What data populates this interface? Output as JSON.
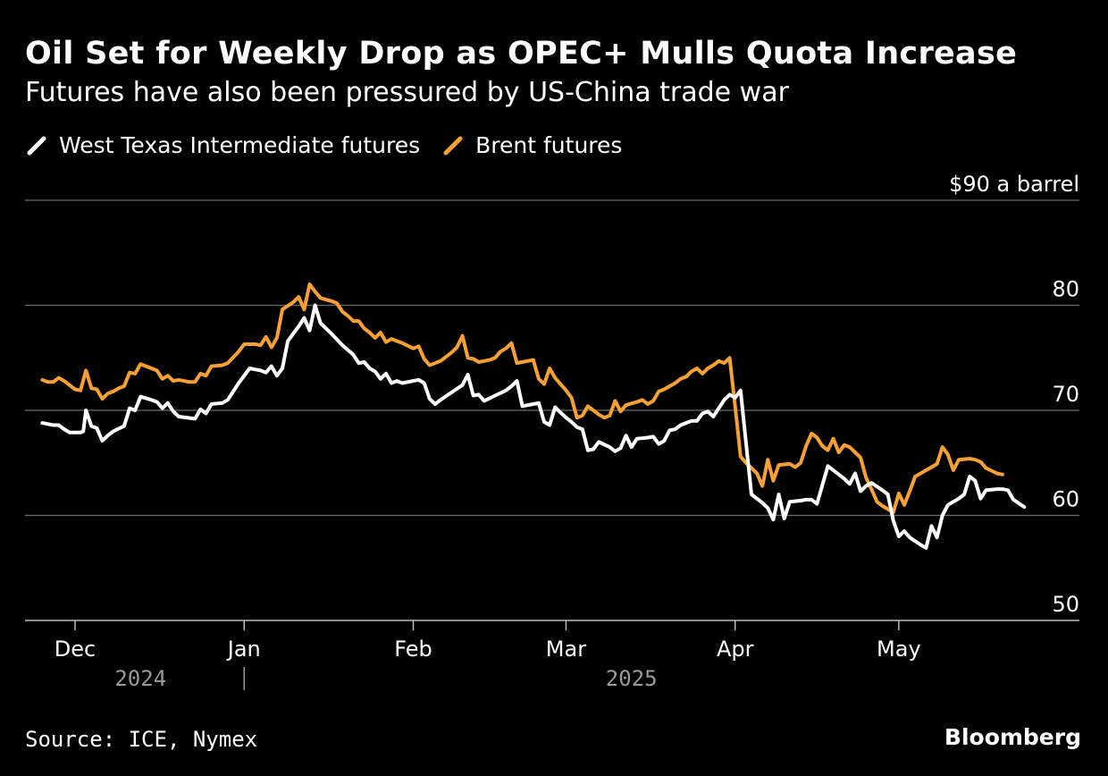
{
  "header": {
    "title": "Oil Set for Weekly Drop as OPEC+ Mulls Quota Increase",
    "subtitle": "Futures have also been pressured by US-China trade war"
  },
  "footer": {
    "source": "Source: ICE, Nymex",
    "brand": "Bloomberg"
  },
  "colors": {
    "background": "#000000",
    "wti": "#ffffff",
    "brent": "#f7a033",
    "grid": "#6b6b6b",
    "year_label": "#9a9a9a"
  },
  "chart_data": {
    "type": "line",
    "title": "Oil Set for Weekly Drop as OPEC+ Mulls Quota Increase",
    "subtitle": "Futures have also been pressured by US-China trade war",
    "ylabel": "$90 a barrel",
    "ylim": [
      50,
      90
    ],
    "y_ticks": [
      50,
      60,
      70,
      80,
      90
    ],
    "y_tick_labels": [
      "50",
      "60",
      "70",
      "80",
      "$90 a barrel"
    ],
    "x_domain": [
      -5,
      175
    ],
    "x_unit": "days since Dec 1, 2024",
    "x_ticks": [
      {
        "day": 0,
        "label": "Dec"
      },
      {
        "day": 31,
        "label": "Jan"
      },
      {
        "day": 62,
        "label": "Feb"
      },
      {
        "day": 90,
        "label": "Mar"
      },
      {
        "day": 121,
        "label": "Apr"
      },
      {
        "day": 151,
        "label": "May"
      }
    ],
    "year_labels": [
      {
        "day": 12,
        "label": "2024"
      },
      {
        "day": 102,
        "label": "2025"
      }
    ],
    "year_divider_day": 31,
    "legend": [
      "West Texas Intermediate futures",
      "Brent futures"
    ],
    "series": [
      {
        "name": "West Texas Intermediate futures",
        "color": "#ffffff",
        "points": [
          [
            -6,
            68.8
          ],
          [
            -4,
            68.6
          ],
          [
            -3,
            68.6
          ],
          [
            -2,
            68.2
          ],
          [
            -1,
            67.9
          ],
          [
            1,
            67.9
          ],
          [
            1.5,
            68.0
          ],
          [
            2,
            70.0
          ],
          [
            3,
            68.5
          ],
          [
            4,
            68.3
          ],
          [
            5,
            67.1
          ],
          [
            6,
            67.6
          ],
          [
            7,
            68.0
          ],
          [
            9,
            68.5
          ],
          [
            10,
            70.2
          ],
          [
            11,
            70.0
          ],
          [
            12,
            71.3
          ],
          [
            14,
            71.0
          ],
          [
            15,
            70.8
          ],
          [
            16,
            70.2
          ],
          [
            17,
            70.7
          ],
          [
            18,
            69.9
          ],
          [
            19,
            69.4
          ],
          [
            22,
            69.2
          ],
          [
            23,
            70.1
          ],
          [
            24,
            69.7
          ],
          [
            25,
            70.6
          ],
          [
            27,
            70.7
          ],
          [
            28,
            71.0
          ],
          [
            30,
            72.6
          ],
          [
            32,
            74.0
          ],
          [
            34,
            73.8
          ],
          [
            35,
            73.6
          ],
          [
            36,
            74.2
          ],
          [
            37,
            73.3
          ],
          [
            38,
            74.0
          ],
          [
            39,
            76.6
          ],
          [
            41,
            78.0
          ],
          [
            42,
            78.8
          ],
          [
            43,
            77.6
          ],
          [
            44,
            80.0
          ],
          [
            45,
            78.3
          ],
          [
            47,
            77.3
          ],
          [
            49,
            76.2
          ],
          [
            51,
            75.3
          ],
          [
            52,
            74.5
          ],
          [
            53,
            74.6
          ],
          [
            54,
            74.0
          ],
          [
            55,
            73.7
          ],
          [
            56,
            73.0
          ],
          [
            57,
            73.5
          ],
          [
            58,
            72.6
          ],
          [
            59,
            72.8
          ],
          [
            60,
            72.6
          ],
          [
            62,
            72.8
          ],
          [
            63,
            72.9
          ],
          [
            64,
            72.6
          ],
          [
            65,
            71.1
          ],
          [
            66,
            70.6
          ],
          [
            67,
            71.0
          ],
          [
            69,
            71.7
          ],
          [
            71,
            72.4
          ],
          [
            72,
            73.4
          ],
          [
            73,
            71.4
          ],
          [
            74,
            71.5
          ],
          [
            75,
            70.9
          ],
          [
            77,
            71.4
          ],
          [
            79,
            71.9
          ],
          [
            80,
            72.3
          ],
          [
            81,
            72.8
          ],
          [
            82,
            70.4
          ],
          [
            84,
            70.6
          ],
          [
            85,
            70.7
          ],
          [
            86,
            68.9
          ],
          [
            87,
            68.6
          ],
          [
            88,
            70.3
          ],
          [
            89,
            69.8
          ],
          [
            90,
            69.3
          ],
          [
            91,
            68.9
          ],
          [
            92,
            68.4
          ],
          [
            93,
            68.2
          ],
          [
            94,
            66.2
          ],
          [
            95,
            66.3
          ],
          [
            96,
            67.0
          ],
          [
            98,
            66.5
          ],
          [
            99,
            66.1
          ],
          [
            100,
            66.4
          ],
          [
            101,
            67.6
          ],
          [
            102,
            66.5
          ],
          [
            103,
            67.3
          ],
          [
            105,
            67.4
          ],
          [
            106,
            67.5
          ],
          [
            107,
            66.8
          ],
          [
            108,
            67.1
          ],
          [
            109,
            68.1
          ],
          [
            110,
            68.2
          ],
          [
            111,
            68.6
          ],
          [
            112,
            68.8
          ],
          [
            113,
            69.0
          ],
          [
            114,
            69.0
          ],
          [
            115,
            69.7
          ],
          [
            116,
            69.9
          ],
          [
            117,
            69.4
          ],
          [
            118,
            70.2
          ],
          [
            119,
            71.0
          ],
          [
            120,
            71.5
          ],
          [
            121,
            71.2
          ],
          [
            122,
            71.9
          ],
          [
            123,
            66.9
          ],
          [
            124,
            62.0
          ],
          [
            126,
            61.2
          ],
          [
            127,
            60.7
          ],
          [
            128,
            59.6
          ],
          [
            129,
            62.0
          ],
          [
            130,
            59.7
          ],
          [
            131,
            61.3
          ],
          [
            133,
            61.4
          ],
          [
            134,
            61.5
          ],
          [
            135,
            61.5
          ],
          [
            136,
            61.1
          ],
          [
            138,
            64.7
          ],
          [
            141,
            63.5
          ],
          [
            142,
            63.0
          ],
          [
            143,
            64.0
          ],
          [
            144,
            62.3
          ],
          [
            145,
            62.8
          ],
          [
            146,
            63.1
          ],
          [
            148,
            62.4
          ],
          [
            149,
            62.0
          ],
          [
            150,
            59.5
          ],
          [
            151,
            58.0
          ],
          [
            152,
            58.5
          ],
          [
            153,
            57.9
          ],
          [
            155,
            57.2
          ],
          [
            156,
            56.9
          ],
          [
            157,
            59.0
          ],
          [
            158,
            57.9
          ],
          [
            159,
            60.0
          ],
          [
            160,
            61.0
          ],
          [
            162,
            61.6
          ],
          [
            163,
            62.0
          ],
          [
            164,
            63.7
          ],
          [
            165,
            63.3
          ],
          [
            166,
            61.6
          ],
          [
            167,
            62.4
          ],
          [
            169,
            62.5
          ],
          [
            170,
            62.5
          ],
          [
            171,
            62.4
          ],
          [
            172,
            61.5
          ],
          [
            174,
            60.8
          ]
        ]
      },
      {
        "name": "Brent futures",
        "color": "#f7a033",
        "points": [
          [
            -6,
            72.9
          ],
          [
            -5,
            72.7
          ],
          [
            -4,
            72.7
          ],
          [
            -3,
            73.1
          ],
          [
            -2,
            72.8
          ],
          [
            -1,
            72.4
          ],
          [
            0,
            72.0
          ],
          [
            1,
            71.9
          ],
          [
            2,
            73.8
          ],
          [
            3,
            72.1
          ],
          [
            4,
            72.0
          ],
          [
            5,
            71.1
          ],
          [
            6,
            71.6
          ],
          [
            7,
            71.8
          ],
          [
            8,
            72.1
          ],
          [
            9,
            72.3
          ],
          [
            10,
            73.6
          ],
          [
            11,
            73.5
          ],
          [
            12,
            74.4
          ],
          [
            14,
            74.0
          ],
          [
            15,
            73.8
          ],
          [
            16,
            73.0
          ],
          [
            17,
            73.3
          ],
          [
            18,
            72.8
          ],
          [
            19,
            72.9
          ],
          [
            21,
            72.7
          ],
          [
            22,
            72.7
          ],
          [
            23,
            73.5
          ],
          [
            24,
            73.3
          ],
          [
            25,
            74.2
          ],
          [
            27,
            74.3
          ],
          [
            28,
            74.5
          ],
          [
            30,
            75.6
          ],
          [
            31,
            76.3
          ],
          [
            33,
            76.3
          ],
          [
            34,
            76.2
          ],
          [
            35,
            77.0
          ],
          [
            36,
            76.0
          ],
          [
            37,
            76.9
          ],
          [
            38,
            79.6
          ],
          [
            40,
            80.3
          ],
          [
            41,
            80.8
          ],
          [
            42,
            79.6
          ],
          [
            43,
            82.0
          ],
          [
            44,
            81.3
          ],
          [
            45,
            80.7
          ],
          [
            47,
            80.4
          ],
          [
            48,
            80.2
          ],
          [
            49,
            79.4
          ],
          [
            50,
            79.0
          ],
          [
            51,
            78.5
          ],
          [
            52,
            78.5
          ],
          [
            53,
            77.8
          ],
          [
            54,
            77.4
          ],
          [
            55,
            76.9
          ],
          [
            56,
            77.4
          ],
          [
            57,
            76.5
          ],
          [
            58,
            76.8
          ],
          [
            59,
            76.6
          ],
          [
            60,
            76.4
          ],
          [
            62,
            75.9
          ],
          [
            63,
            76.1
          ],
          [
            64,
            74.9
          ],
          [
            65,
            74.3
          ],
          [
            67,
            74.7
          ],
          [
            69,
            75.5
          ],
          [
            70,
            76.0
          ],
          [
            71,
            77.1
          ],
          [
            72,
            75.0
          ],
          [
            73,
            74.9
          ],
          [
            74,
            74.6
          ],
          [
            76,
            74.8
          ],
          [
            77,
            75.0
          ],
          [
            78,
            75.6
          ],
          [
            79,
            75.9
          ],
          [
            80,
            76.4
          ],
          [
            81,
            74.5
          ],
          [
            84,
            74.8
          ],
          [
            85,
            73.0
          ],
          [
            86,
            72.5
          ],
          [
            87,
            74.0
          ],
          [
            88,
            73.1
          ],
          [
            89,
            72.5
          ],
          [
            90,
            71.9
          ],
          [
            91,
            71.2
          ],
          [
            92,
            69.3
          ],
          [
            93,
            69.5
          ],
          [
            94,
            70.4
          ],
          [
            95,
            70.0
          ],
          [
            96,
            69.6
          ],
          [
            97,
            69.3
          ],
          [
            98,
            69.5
          ],
          [
            99,
            70.9
          ],
          [
            100,
            69.9
          ],
          [
            101,
            70.5
          ],
          [
            103,
            70.8
          ],
          [
            104,
            71.0
          ],
          [
            105,
            70.6
          ],
          [
            106,
            70.9
          ],
          [
            107,
            71.8
          ],
          [
            108,
            72.0
          ],
          [
            109,
            72.3
          ],
          [
            110,
            72.6
          ],
          [
            111,
            73.0
          ],
          [
            112,
            73.2
          ],
          [
            113,
            73.7
          ],
          [
            114,
            74.0
          ],
          [
            115,
            73.5
          ],
          [
            116,
            74.0
          ],
          [
            117,
            74.3
          ],
          [
            118,
            74.7
          ],
          [
            119,
            74.5
          ],
          [
            120,
            75.0
          ],
          [
            121,
            70.4
          ],
          [
            122,
            65.6
          ],
          [
            123,
            65.0
          ],
          [
            124,
            64.5
          ],
          [
            125,
            64.0
          ],
          [
            126,
            62.8
          ],
          [
            127,
            65.3
          ],
          [
            128,
            63.3
          ],
          [
            129,
            64.8
          ],
          [
            131,
            64.9
          ],
          [
            132,
            64.6
          ],
          [
            133,
            65.0
          ],
          [
            134,
            66.6
          ],
          [
            135,
            67.8
          ],
          [
            136,
            67.4
          ],
          [
            137,
            66.6
          ],
          [
            138,
            66.2
          ],
          [
            139,
            67.3
          ],
          [
            140,
            66.0
          ],
          [
            141,
            66.7
          ],
          [
            142,
            66.5
          ],
          [
            143,
            66.0
          ],
          [
            144,
            65.5
          ],
          [
            145,
            63.6
          ],
          [
            146,
            62.5
          ],
          [
            147,
            61.3
          ],
          [
            148,
            60.9
          ],
          [
            149,
            60.6
          ],
          [
            150,
            60.3
          ],
          [
            151,
            62.1
          ],
          [
            152,
            61.0
          ],
          [
            153,
            62.3
          ],
          [
            154,
            63.7
          ],
          [
            156,
            64.3
          ],
          [
            157,
            64.6
          ],
          [
            158,
            64.9
          ],
          [
            159,
            66.5
          ],
          [
            160,
            65.8
          ],
          [
            161,
            64.3
          ],
          [
            162,
            65.3
          ],
          [
            164,
            65.4
          ],
          [
            165,
            65.3
          ],
          [
            166,
            65.1
          ],
          [
            167,
            64.5
          ],
          [
            169,
            64.0
          ],
          [
            170,
            63.9
          ]
        ]
      }
    ]
  }
}
